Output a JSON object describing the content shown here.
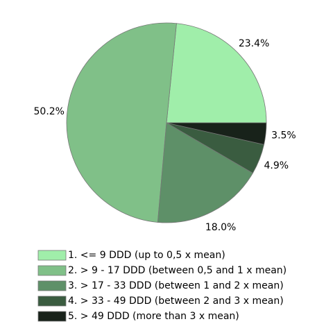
{
  "chart_data": {
    "type": "pie",
    "categories": [
      "1. <= 9 DDD (up to 0,5 x mean)",
      "2. > 9 - 17 DDD (between 0,5 and 1 x mean)",
      "3. > 17 - 33 DDD (between 1 and 2 x mean)",
      "4. > 33 - 49 DDD (between 2 and 3 x mean)",
      "5. > 49 DDD (more than 3 x mean)"
    ],
    "values": [
      23.4,
      50.2,
      18.0,
      4.9,
      3.5
    ],
    "value_labels": [
      "23.4%",
      "50.2%",
      "18.0%",
      "4.9%",
      "3.5%"
    ],
    "colors": [
      "#a0eeaa",
      "#80c088",
      "#5e9068",
      "#3a5c40",
      "#18221a"
    ],
    "legend": "bottom"
  }
}
